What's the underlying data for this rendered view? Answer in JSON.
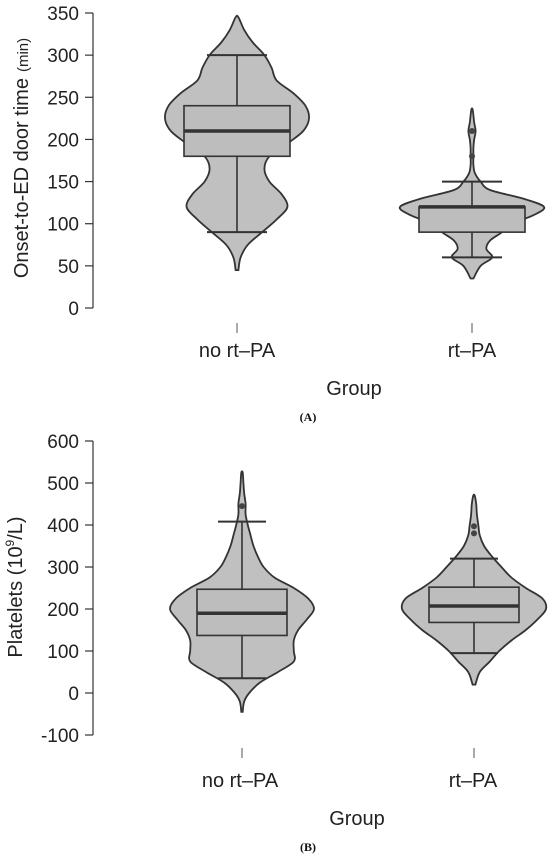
{
  "chart_data": [
    {
      "type": "violin",
      "panel": "(A)",
      "xlabel": "Group",
      "ylabel": "Onset-to-ED door time",
      "ylabel_unit": "(min)",
      "ylim": [
        0,
        350
      ],
      "yticks": [
        "0",
        "50",
        "100",
        "150",
        "200",
        "250",
        "300",
        "350"
      ],
      "categories": [
        "no  rt–PA",
        "rt–PA"
      ],
      "series": [
        {
          "category": "no  rt–PA",
          "violin_range": [
            45,
            345
          ],
          "density": [
            [
              45,
              0.02
            ],
            [
              60,
              0.05
            ],
            [
              75,
              0.15
            ],
            [
              90,
              0.35
            ],
            [
              105,
              0.55
            ],
            [
              120,
              0.7
            ],
            [
              135,
              0.62
            ],
            [
              150,
              0.45
            ],
            [
              165,
              0.38
            ],
            [
              180,
              0.45
            ],
            [
              195,
              0.7
            ],
            [
              210,
              0.92
            ],
            [
              225,
              1.0
            ],
            [
              240,
              0.95
            ],
            [
              255,
              0.78
            ],
            [
              270,
              0.55
            ],
            [
              285,
              0.48
            ],
            [
              300,
              0.38
            ],
            [
              315,
              0.22
            ],
            [
              330,
              0.1
            ],
            [
              345,
              0.02
            ]
          ],
          "q1": 180,
          "median": 210,
          "q3": 240,
          "whisker_low": 90,
          "whisker_high": 300,
          "outliers": []
        },
        {
          "category": "rt–PA",
          "violin_range": [
            35,
            235
          ],
          "density": [
            [
              35,
              0.02
            ],
            [
              50,
              0.12
            ],
            [
              60,
              0.28
            ],
            [
              70,
              0.2
            ],
            [
              80,
              0.25
            ],
            [
              90,
              0.42
            ],
            [
              100,
              0.55
            ],
            [
              110,
              0.85
            ],
            [
              120,
              1.0
            ],
            [
              130,
              0.7
            ],
            [
              140,
              0.25
            ],
            [
              150,
              0.12
            ],
            [
              160,
              0.04
            ],
            [
              170,
              0.02
            ],
            [
              180,
              0.02
            ],
            [
              190,
              0.02
            ],
            [
              200,
              0.03
            ],
            [
              210,
              0.05
            ],
            [
              220,
              0.03
            ],
            [
              235,
              0.01
            ]
          ],
          "q1": 90,
          "median": 120,
          "q3": 120,
          "whisker_low": 60,
          "whisker_high": 150,
          "outliers": [
            180,
            210
          ]
        }
      ]
    },
    {
      "type": "violin",
      "panel": "(B)",
      "xlabel": "Group",
      "ylabel": "Platelets (10",
      "ylabel_sup": "9",
      "ylabel_tail": "/L)",
      "ylim": [
        -100,
        600
      ],
      "yticks": [
        "-100",
        "0",
        "100",
        "200",
        "300",
        "400",
        "500",
        "600"
      ],
      "categories": [
        "no  rt–PA",
        "rt–PA"
      ],
      "series": [
        {
          "category": "no  rt–PA",
          "violin_range": [
            -45,
            525
          ],
          "density": [
            [
              -45,
              0.01
            ],
            [
              -20,
              0.03
            ],
            [
              0,
              0.1
            ],
            [
              25,
              0.25
            ],
            [
              50,
              0.5
            ],
            [
              75,
              0.72
            ],
            [
              100,
              0.72
            ],
            [
              125,
              0.72
            ],
            [
              150,
              0.78
            ],
            [
              175,
              0.9
            ],
            [
              200,
              1.0
            ],
            [
              225,
              0.92
            ],
            [
              250,
              0.72
            ],
            [
              275,
              0.45
            ],
            [
              300,
              0.3
            ],
            [
              325,
              0.22
            ],
            [
              350,
              0.16
            ],
            [
              375,
              0.12
            ],
            [
              400,
              0.08
            ],
            [
              425,
              0.05
            ],
            [
              450,
              0.05
            ],
            [
              475,
              0.03
            ],
            [
              500,
              0.02
            ],
            [
              525,
              0.01
            ]
          ],
          "q1": 137,
          "median": 190,
          "q3": 247,
          "whisker_low": 35,
          "whisker_high": 408,
          "outliers": [
            445
          ]
        },
        {
          "category": "rt–PA",
          "violin_range": [
            20,
            470
          ],
          "density": [
            [
              20,
              0.02
            ],
            [
              50,
              0.08
            ],
            [
              75,
              0.22
            ],
            [
              100,
              0.35
            ],
            [
              125,
              0.52
            ],
            [
              150,
              0.72
            ],
            [
              175,
              0.88
            ],
            [
              200,
              1.0
            ],
            [
              225,
              0.95
            ],
            [
              250,
              0.72
            ],
            [
              275,
              0.52
            ],
            [
              300,
              0.38
            ],
            [
              325,
              0.25
            ],
            [
              350,
              0.14
            ],
            [
              375,
              0.08
            ],
            [
              400,
              0.06
            ],
            [
              425,
              0.04
            ],
            [
              450,
              0.03
            ],
            [
              470,
              0.01
            ]
          ],
          "q1": 168,
          "median": 207,
          "q3": 252,
          "whisker_low": 95,
          "whisker_high": 320,
          "outliers": [
            380,
            397
          ]
        }
      ]
    }
  ]
}
